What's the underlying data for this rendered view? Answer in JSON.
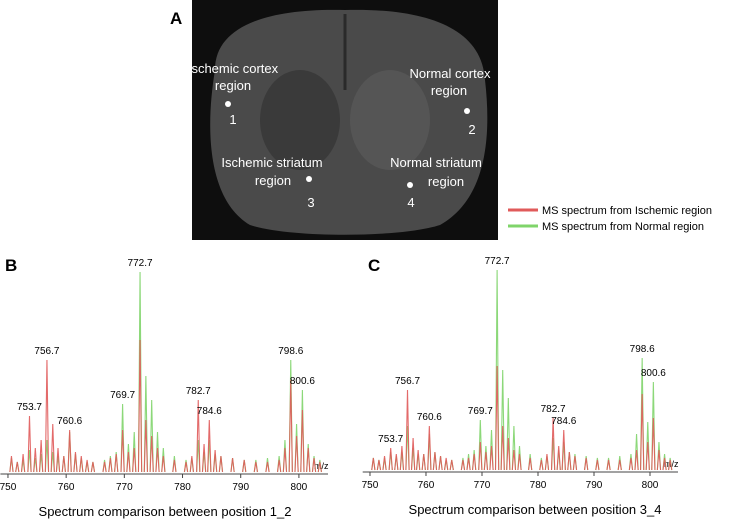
{
  "panel_a": {
    "label": "A",
    "regions": [
      {
        "lines": [
          "Ischemic cortex",
          "region"
        ],
        "number": "1"
      },
      {
        "lines": [
          "Normal cortex",
          "region"
        ],
        "number": "2"
      },
      {
        "lines": [
          "Ischemic striatum",
          "region"
        ],
        "number": "3"
      },
      {
        "lines": [
          "Normal striatum",
          "region"
        ],
        "number": "4"
      }
    ]
  },
  "chart_data": [
    {
      "type": "spectrum",
      "panel": "B",
      "caption": "Spectrum comparison between  position 1_2",
      "xlabel": "m/z",
      "x": [
        750.6,
        751.6,
        752.6,
        753.7,
        754.7,
        755.7,
        756.7,
        757.7,
        758.6,
        759.6,
        760.6,
        761.6,
        762.6,
        763.6,
        764.6,
        766.6,
        767.6,
        768.6,
        769.7,
        770.7,
        771.7,
        772.7,
        773.7,
        774.7,
        775.7,
        776.7,
        778.6,
        780.6,
        781.6,
        782.7,
        783.7,
        784.6,
        785.6,
        786.6,
        788.6,
        790.6,
        792.6,
        794.6,
        796.6,
        797.6,
        798.6,
        799.6,
        800.6,
        801.6,
        802.6,
        803.6
      ],
      "series": [
        {
          "name": "MS spectrum from Ischemic region",
          "color": "#e05a5a",
          "values": [
            8,
            5,
            9,
            28,
            12,
            16,
            56,
            24,
            12,
            8,
            21,
            10,
            8,
            6,
            5,
            5,
            7,
            9,
            21,
            10,
            12,
            66,
            26,
            18,
            12,
            8,
            6,
            5,
            8,
            36,
            14,
            26,
            11,
            8,
            7,
            6,
            5,
            5,
            6,
            12,
            46,
            18,
            31,
            12,
            7,
            5
          ]
        },
        {
          "name": "MS spectrum from Normal region",
          "color": "#7fd46a",
          "values": [
            7,
            5,
            6,
            11,
            7,
            9,
            16,
            10,
            8,
            8,
            20,
            9,
            7,
            5,
            5,
            6,
            8,
            10,
            34,
            14,
            20,
            100,
            48,
            36,
            20,
            12,
            8,
            6,
            7,
            16,
            10,
            16,
            9,
            8,
            7,
            6,
            6,
            7,
            8,
            16,
            56,
            24,
            41,
            14,
            8,
            6
          ]
        }
      ],
      "annotations": [
        753.7,
        756.7,
        760.6,
        769.7,
        772.7,
        782.7,
        784.6,
        798.6,
        800.6
      ],
      "xlim": [
        748.7,
        805
      ],
      "xticks": [
        750,
        760,
        770,
        780,
        790,
        800
      ],
      "ylim": [
        0,
        100
      ]
    },
    {
      "type": "spectrum",
      "panel": "C",
      "caption": "Spectrum comparison between  position 3_4",
      "xlabel": "m/z",
      "x": [
        750.6,
        751.6,
        752.6,
        753.7,
        754.7,
        755.7,
        756.7,
        757.7,
        758.6,
        759.6,
        760.6,
        761.6,
        762.6,
        763.6,
        764.6,
        766.6,
        767.6,
        768.6,
        769.7,
        770.7,
        771.7,
        772.7,
        773.7,
        774.7,
        775.7,
        776.7,
        778.6,
        780.6,
        781.6,
        782.7,
        783.7,
        784.6,
        785.6,
        786.6,
        788.6,
        790.6,
        792.6,
        794.6,
        796.6,
        797.6,
        798.6,
        799.6,
        800.6,
        801.6,
        802.6,
        803.6
      ],
      "series": [
        {
          "color": "#e05a5a",
          "values": [
            6,
            5,
            7,
            11,
            8,
            12,
            40,
            16,
            10,
            8,
            22,
            9,
            7,
            6,
            5,
            5,
            6,
            8,
            14,
            9,
            12,
            52,
            22,
            16,
            10,
            8,
            6,
            5,
            8,
            26,
            12,
            20,
            9,
            7,
            6,
            5,
            5,
            5,
            6,
            10,
            38,
            14,
            26,
            10,
            6,
            5
          ]
        },
        {
          "color": "#7fd46a",
          "values": [
            6,
            5,
            6,
            9,
            7,
            9,
            22,
            11,
            8,
            8,
            18,
            9,
            7,
            5,
            5,
            6,
            8,
            10,
            25,
            12,
            20,
            100,
            50,
            36,
            22,
            12,
            8,
            6,
            7,
            16,
            10,
            14,
            9,
            8,
            7,
            6,
            6,
            7,
            8,
            18,
            56,
            24,
            44,
            14,
            8,
            6
          ]
        }
      ],
      "annotations": [
        753.7,
        756.7,
        760.6,
        769.7,
        772.7,
        782.7,
        784.6,
        798.6,
        800.6
      ],
      "xlim": [
        748.7,
        805
      ],
      "xticks": [
        750,
        760,
        770,
        780,
        790,
        800
      ],
      "ylim": [
        0,
        100
      ]
    }
  ]
}
